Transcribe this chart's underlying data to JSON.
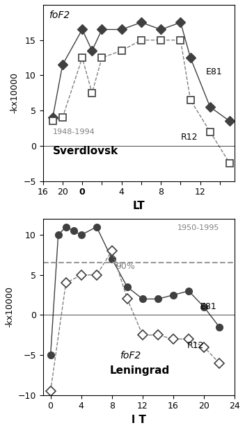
{
  "top": {
    "title_text": "foF2",
    "station": "Sverdlovsk",
    "years": "1948-1994",
    "xlabel": "LT",
    "ylabel": "-kx10000",
    "ylim": [
      -5,
      20
    ],
    "yticks": [
      -5,
      0,
      5,
      10,
      15
    ],
    "xlim": [
      16,
      14
    ],
    "xticks": [
      16,
      20,
      0,
      4,
      8,
      12
    ],
    "xticklabels": [
      "16",
      "20",
      "0",
      "4",
      "8",
      "12"
    ],
    "e81_x": [
      18,
      20,
      24,
      26,
      28,
      32,
      36,
      40,
      44,
      46,
      50,
      54
    ],
    "e81_y": [
      4.0,
      11.5,
      16.5,
      13.5,
      16.5,
      16.5,
      17.5,
      16.5,
      17.5,
      12.5,
      5.5,
      3.5
    ],
    "r12_x": [
      18,
      20,
      24,
      26,
      28,
      32,
      36,
      40,
      44,
      46,
      50,
      54
    ],
    "r12_y": [
      3.5,
      4.0,
      12.5,
      7.5,
      12.5,
      13.5,
      15.0,
      15.0,
      15.0,
      6.5,
      2.0,
      -2.5
    ],
    "e81_label": "E81",
    "r12_label": "R12"
  },
  "bottom": {
    "title_text": "foF2",
    "station": "Leningrad",
    "years": "1950-1995",
    "xlabel": "l T",
    "ylabel": "-kx10000",
    "ylim": [
      -10,
      12
    ],
    "yticks": [
      -10,
      -5,
      0,
      5,
      10
    ],
    "xlim": [
      -1,
      24
    ],
    "xticks": [
      0,
      4,
      8,
      12,
      16,
      20,
      24
    ],
    "xticklabels": [
      "0",
      "4",
      "8",
      "12",
      "16",
      "20",
      "24"
    ],
    "e81_x": [
      0,
      1,
      2,
      3,
      4,
      6,
      8,
      10,
      12,
      14,
      16,
      18,
      20,
      22
    ],
    "e81_y": [
      -5.0,
      10.0,
      11.0,
      10.5,
      10.0,
      11.0,
      7.0,
      3.5,
      2.0,
      2.0,
      2.5,
      3.0,
      1.0,
      -1.5
    ],
    "r12_x": [
      0,
      2,
      4,
      6,
      8,
      10,
      12,
      14,
      16,
      18,
      20,
      22
    ],
    "r12_y": [
      -9.5,
      4.0,
      5.0,
      5.0,
      8.0,
      2.0,
      -2.5,
      -2.5,
      -3.0,
      -3.0,
      -4.0,
      -6.0
    ],
    "threshold_y": 6.5,
    "threshold_label": "90%",
    "e81_label": "E81",
    "r12_label": "R12"
  },
  "bg_color": "#f0f0f0",
  "line_color": "#404040",
  "dashed_color": "#808080"
}
